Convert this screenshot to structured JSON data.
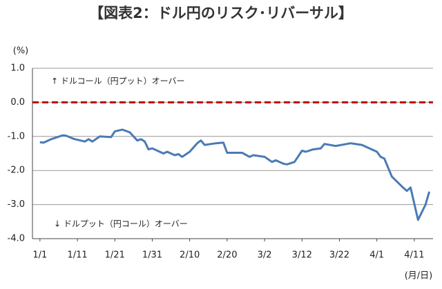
{
  "chart_data": {
    "type": "line",
    "title": "【図表2：ドル円のリスク･リバーサル】",
    "y_unit": "(%)",
    "x_unit": "(月/日)",
    "annotations": [
      "↑ ドルコール（円プット）オーバー",
      "↓ ドルプット（円コール）オーバー"
    ],
    "x": [
      0,
      1,
      3,
      6,
      7,
      9,
      12,
      13,
      14,
      16,
      19,
      20,
      22,
      24,
      26,
      27,
      28,
      29,
      30,
      33,
      34,
      36,
      37,
      38,
      40,
      42,
      43,
      44,
      47,
      49,
      50,
      54,
      56,
      57,
      60,
      62,
      63,
      65,
      66,
      68,
      70,
      71,
      73,
      75,
      76,
      79,
      83,
      86,
      90,
      91,
      92,
      94,
      97,
      98,
      99,
      101,
      103,
      104
    ],
    "series": [
      {
        "name": "リスク・リバーサル",
        "color": "#4a7ab5",
        "values": [
          -1.17,
          -1.18,
          -1.08,
          -0.97,
          -0.98,
          -1.07,
          -1.15,
          -1.08,
          -1.15,
          -1.0,
          -1.02,
          -0.85,
          -0.8,
          -0.88,
          -1.12,
          -1.08,
          -1.15,
          -1.38,
          -1.35,
          -1.5,
          -1.45,
          -1.55,
          -1.52,
          -1.6,
          -1.45,
          -1.2,
          -1.12,
          -1.25,
          -1.2,
          -1.18,
          -1.48,
          -1.48,
          -1.6,
          -1.55,
          -1.6,
          -1.75,
          -1.7,
          -1.8,
          -1.82,
          -1.75,
          -1.42,
          -1.45,
          -1.38,
          -1.35,
          -1.22,
          -1.28,
          -1.2,
          -1.25,
          -1.45,
          -1.6,
          -1.65,
          -2.18,
          -2.5,
          -2.6,
          -2.5,
          -3.45,
          -3.0,
          -2.62
        ]
      }
    ],
    "reference_line": {
      "value": 0,
      "color": "#c00000"
    },
    "xlim": [
      -2,
      105
    ],
    "xticks": [
      {
        "value": 0,
        "label": "1/1"
      },
      {
        "value": 10,
        "label": "1/11"
      },
      {
        "value": 20,
        "label": "1/21"
      },
      {
        "value": 30,
        "label": "1/31"
      },
      {
        "value": 40,
        "label": "2/10"
      },
      {
        "value": 50,
        "label": "2/20"
      },
      {
        "value": 60,
        "label": "3/2"
      },
      {
        "value": 70,
        "label": "3/12"
      },
      {
        "value": 80,
        "label": "3/22"
      },
      {
        "value": 90,
        "label": "4/1"
      },
      {
        "value": 100,
        "label": "4/11"
      }
    ],
    "ylim": [
      -4,
      1
    ],
    "yticks": [
      {
        "value": 1,
        "label": "1.0"
      },
      {
        "value": 0,
        "label": "0.0"
      },
      {
        "value": -1,
        "label": "-1.0"
      },
      {
        "value": -2,
        "label": "-2.0"
      },
      {
        "value": -3,
        "label": "-3.0"
      },
      {
        "value": -4,
        "label": "-4.0"
      }
    ],
    "grid": true
  }
}
